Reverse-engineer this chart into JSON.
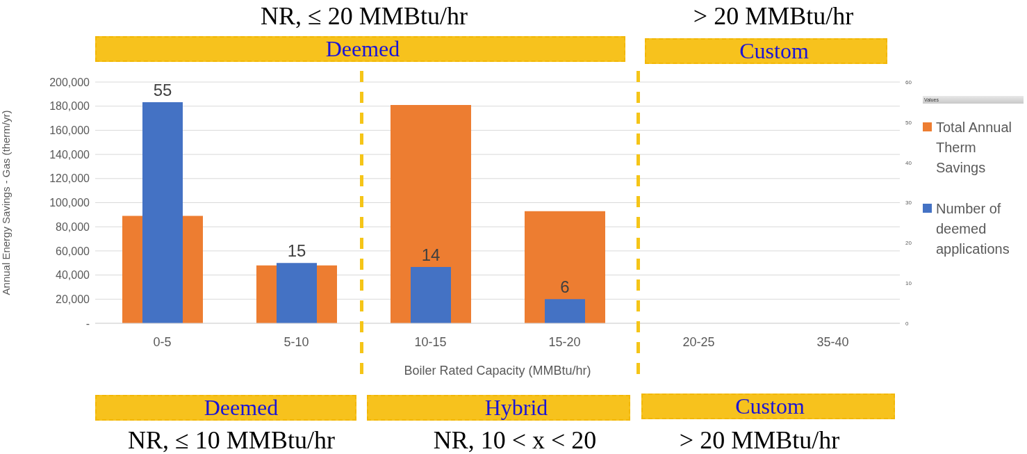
{
  "chart_data": {
    "type": "bar",
    "xlabel": "Boiler Rated Capacity (MMBtu/hr)",
    "ylabel": "Annual Energy Savings - Gas (therm/yr)",
    "legend_title": "Values",
    "categories": [
      "0-5",
      "5-10",
      "10-15",
      "15-20",
      "20-25",
      "35-40"
    ],
    "series": [
      {
        "name": "Total Annual Therm Savings",
        "color": "#ed7d31",
        "values": [
          89000,
          48000,
          181000,
          93000,
          null,
          null
        ]
      },
      {
        "name": "Number of deemed applications",
        "color": "#4472c4",
        "axis": "y2",
        "values": [
          55,
          15,
          14,
          6,
          null,
          null
        ],
        "value_labels": [
          "55",
          "15",
          "14",
          "6",
          null,
          null
        ]
      }
    ],
    "ylim": [
      0,
      200000
    ],
    "yticks": [
      {
        "value": 0,
        "label": "-"
      },
      {
        "value": 20000,
        "label": "20,000"
      },
      {
        "value": 40000,
        "label": "40,000"
      },
      {
        "value": 60000,
        "label": "60,000"
      },
      {
        "value": 80000,
        "label": "80,000"
      },
      {
        "value": 100000,
        "label": "100,000"
      },
      {
        "value": 120000,
        "label": "120,000"
      },
      {
        "value": 140000,
        "label": "140,000"
      },
      {
        "value": 160000,
        "label": "160,000"
      },
      {
        "value": 180000,
        "label": "180,000"
      },
      {
        "value": 200000,
        "label": "200,000"
      }
    ],
    "y2lim": [
      0,
      60
    ],
    "y2ticks": [
      0,
      10,
      20,
      30,
      40,
      50,
      60
    ],
    "grid": "y",
    "legend": "right",
    "annotations": [
      "NR, ≤ 20 MMBtu/hr",
      "> 20 MMBtu/hr",
      "Deemed",
      "Custom",
      "Deemed",
      "Hybrid",
      "Custom",
      "NR, ≤ 10 MMBtu/hr",
      "NR, 10 < x < 20",
      "> 20 MMBtu/hr"
    ]
  }
}
